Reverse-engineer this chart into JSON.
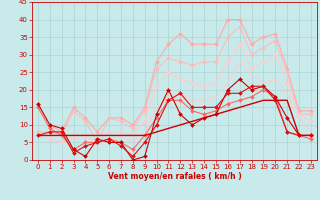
{
  "background_color": "#c8eaea",
  "grid_color": "#a8cccc",
  "xlabel": "Vent moyen/en rafales ( km/h )",
  "xlabel_color": "#cc0000",
  "xlabel_fontsize": 5.5,
  "tick_color": "#cc0000",
  "tick_fontsize": 5,
  "xlim": [
    -0.5,
    23.5
  ],
  "ylim": [
    0,
    45
  ],
  "yticks": [
    0,
    5,
    10,
    15,
    20,
    25,
    30,
    35,
    40,
    45
  ],
  "xticks": [
    0,
    1,
    2,
    3,
    4,
    5,
    6,
    7,
    8,
    9,
    10,
    11,
    12,
    13,
    14,
    15,
    16,
    17,
    18,
    19,
    20,
    21,
    22,
    23
  ],
  "series": [
    {
      "x": [
        0,
        1,
        2,
        3,
        4,
        5,
        6,
        7,
        8,
        9,
        10,
        11,
        12,
        13,
        14,
        15,
        16,
        17,
        18,
        19,
        20,
        21,
        22,
        23
      ],
      "y": [
        16,
        10,
        8,
        15,
        12,
        8,
        12,
        12,
        10,
        15,
        28,
        33,
        36,
        33,
        33,
        33,
        40,
        40,
        33,
        35,
        36,
        26,
        14,
        14
      ],
      "color": "#ffaaaa",
      "lw": 0.8,
      "marker": "D",
      "ms": 2.0
    },
    {
      "x": [
        0,
        1,
        2,
        3,
        4,
        5,
        6,
        7,
        8,
        9,
        10,
        11,
        12,
        13,
        14,
        15,
        16,
        17,
        18,
        19,
        20,
        21,
        22,
        23
      ],
      "y": [
        8,
        8,
        7,
        14,
        11,
        5,
        12,
        11,
        9,
        14,
        26,
        29,
        28,
        27,
        28,
        28,
        35,
        38,
        30,
        32,
        34,
        25,
        13,
        13
      ],
      "color": "#ffbbbb",
      "lw": 0.8,
      "marker": "D",
      "ms": 2.0
    },
    {
      "x": [
        0,
        1,
        2,
        3,
        4,
        5,
        6,
        7,
        8,
        9,
        10,
        11,
        12,
        13,
        14,
        15,
        16,
        17,
        18,
        19,
        20,
        21,
        22,
        23
      ],
      "y": [
        7,
        6,
        5,
        7,
        7,
        5,
        8,
        8,
        7,
        11,
        21,
        25,
        23,
        22,
        21,
        22,
        28,
        33,
        26,
        28,
        30,
        22,
        13,
        11
      ],
      "color": "#ffcccc",
      "lw": 0.8,
      "marker": "D",
      "ms": 2.0
    },
    {
      "x": [
        0,
        1,
        2,
        3,
        4,
        5,
        6,
        7,
        8,
        9,
        10,
        11,
        12,
        13,
        14,
        15,
        16,
        17,
        18,
        19,
        20,
        21,
        22,
        23
      ],
      "y": [
        7,
        6,
        5,
        6,
        6,
        4,
        6,
        7,
        5,
        8,
        15,
        18,
        19,
        17,
        17,
        18,
        22,
        28,
        24,
        22,
        23,
        19,
        12,
        8
      ],
      "color": "#ffcccc",
      "lw": 0.8,
      "marker": null,
      "ms": 0
    },
    {
      "x": [
        0,
        1,
        2,
        3,
        4,
        5,
        6,
        7,
        8,
        9,
        10,
        11,
        12,
        13,
        14,
        15,
        16,
        17,
        18,
        19,
        20,
        21,
        22,
        23
      ],
      "y": [
        15,
        9,
        7,
        3,
        5,
        5,
        6,
        5,
        3,
        7,
        12,
        17,
        17,
        14,
        13,
        14,
        16,
        17,
        18,
        20,
        18,
        8,
        7,
        6
      ],
      "color": "#ff6666",
      "lw": 0.8,
      "marker": "D",
      "ms": 2.0
    },
    {
      "x": [
        0,
        1,
        2,
        3,
        4,
        5,
        6,
        7,
        8,
        9,
        10,
        11,
        12,
        13,
        14,
        15,
        16,
        17,
        18,
        19,
        20,
        21,
        22,
        23
      ],
      "y": [
        16,
        10,
        9,
        3,
        1,
        6,
        5,
        5,
        0,
        1,
        13,
        20,
        13,
        10,
        12,
        13,
        20,
        23,
        20,
        21,
        18,
        12,
        7,
        7
      ],
      "color": "#cc0000",
      "lw": 0.8,
      "marker": "D",
      "ms": 2.0
    },
    {
      "x": [
        0,
        1,
        2,
        3,
        4,
        5,
        6,
        7,
        8,
        9,
        10,
        11,
        12,
        13,
        14,
        15,
        16,
        17,
        18,
        19,
        20,
        21,
        22,
        23
      ],
      "y": [
        7,
        8,
        8,
        2,
        4,
        5,
        6,
        4,
        1,
        5,
        10,
        17,
        19,
        15,
        15,
        15,
        19,
        19,
        21,
        21,
        17,
        8,
        7,
        7
      ],
      "color": "#dd1111",
      "lw": 0.8,
      "marker": "D",
      "ms": 2.0
    },
    {
      "x": [
        0,
        1,
        2,
        3,
        4,
        5,
        6,
        7,
        8,
        9,
        10,
        11,
        12,
        13,
        14,
        15,
        16,
        17,
        18,
        19,
        20,
        21,
        22,
        23
      ],
      "y": [
        7,
        7,
        7,
        7,
        7,
        7,
        7,
        7,
        7,
        7,
        8,
        9,
        10,
        11,
        12,
        13,
        14,
        15,
        16,
        17,
        17,
        17,
        7,
        7
      ],
      "color": "#cc0000",
      "lw": 1.0,
      "marker": null,
      "ms": 0
    }
  ]
}
